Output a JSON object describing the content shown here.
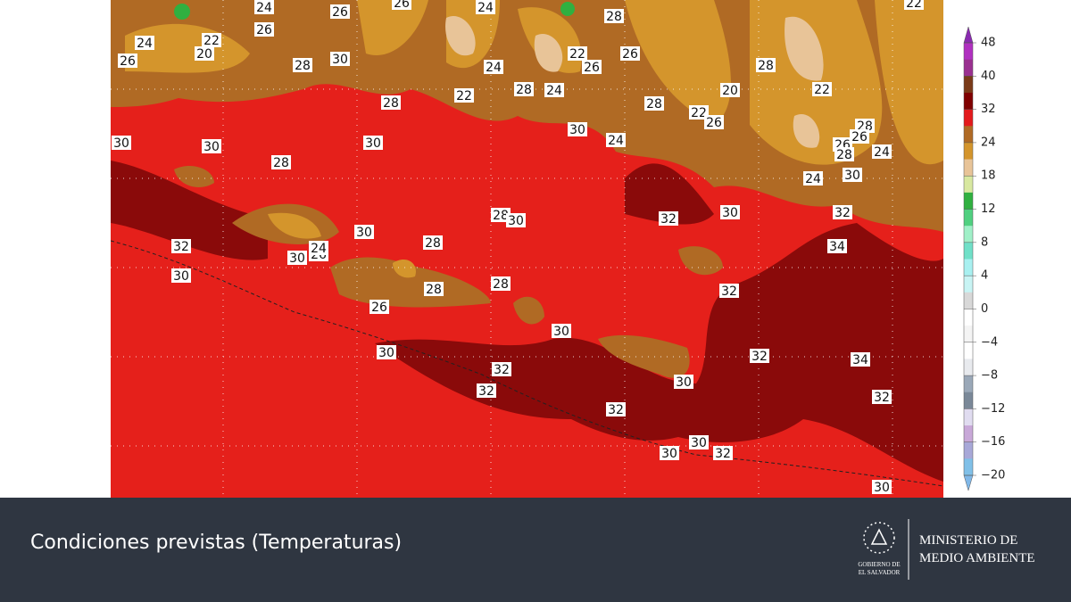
{
  "map": {
    "contour_labels": [
      24,
      26,
      22,
      20,
      24,
      26,
      26,
      28,
      30,
      26,
      24,
      22,
      24,
      28,
      24,
      22,
      26,
      26,
      28,
      28,
      20,
      22,
      26,
      28,
      24,
      30,
      22,
      28,
      26,
      26,
      28,
      24,
      24,
      30,
      32,
      34,
      22,
      30,
      30,
      28,
      30,
      28,
      28,
      30,
      28,
      30,
      32,
      30,
      26,
      24,
      30,
      28,
      28,
      26,
      32,
      30,
      32,
      30,
      30,
      32,
      32,
      30,
      32,
      34,
      32,
      32,
      30,
      30,
      32,
      30
    ]
  },
  "colorbar": {
    "ticks": [
      48,
      40,
      32,
      24,
      18,
      12,
      8,
      4,
      0,
      {
        "value": -4,
        "label": "−4"
      },
      {
        "value": -8,
        "label": "−8"
      },
      {
        "value": -12,
        "label": "−12"
      },
      {
        "value": -16,
        "label": "−16"
      },
      {
        "value": -20,
        "label": "−20"
      }
    ],
    "colors": [
      "#b030c0",
      "#9a3090",
      "#7a3a18",
      "#800000",
      "#e31a1c",
      "#b06a24",
      "#d4952c",
      "#e8c498",
      "#d8e8a0",
      "#30b040",
      "#50d080",
      "#a0f0c8",
      "#70e0c8",
      "#a8f0f0",
      "#c8f4f4",
      "#d8d8d8",
      "#ffffff",
      "#f4f4f4",
      "#ffffff",
      "#e8eaee",
      "#9aa8b8",
      "#7a8898",
      "#e0dcf0",
      "#c8a8d8",
      "#a8a8d8",
      "#80c0e8"
    ]
  },
  "footer": {
    "title": "Condiciones previstas (Temperaturas)",
    "government": [
      "GOBIERNO DE",
      "EL SALVADOR"
    ],
    "ministry": [
      "MINISTERIO DE",
      "MEDIO AMBIENTE"
    ]
  }
}
